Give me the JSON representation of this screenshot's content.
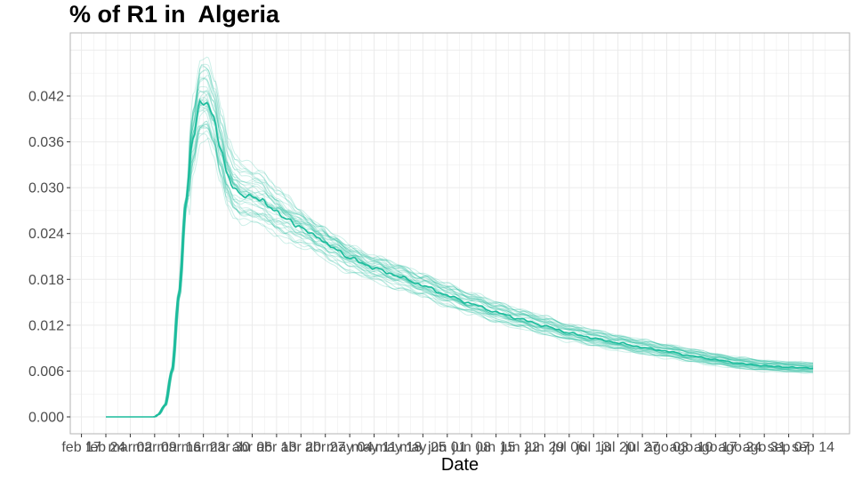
{
  "chart_data": {
    "type": "line",
    "title": "% of R1 in  Algeria",
    "xlabel": "Date",
    "ylabel": "",
    "ylim": [
      0,
      0.049
    ],
    "y_ticks": [
      0.0,
      0.006,
      0.012,
      0.018,
      0.024,
      0.03,
      0.036,
      0.042
    ],
    "y_tick_labels": [
      "0.000",
      "0.006",
      "0.012",
      "0.018",
      "0.024",
      "0.030",
      "0.036",
      "0.042"
    ],
    "x_tick_labels": [
      "feb 17",
      "feb 24",
      "mar 02",
      "mar 09",
      "mar 16",
      "mar 23",
      "mar 30",
      "abr 06",
      "abr 13",
      "abr 20",
      "abr 27",
      "may 04",
      "may 11",
      "may 18",
      "may 25",
      "jun 01",
      "jun 08",
      "jun 15",
      "jun 22",
      "jun 29",
      "jul 06",
      "jul 13",
      "jul 20",
      "jul 27",
      "ago 03",
      "ago 10",
      "ago 17",
      "ago 24",
      "ago 31",
      "sep 07",
      "sep 14"
    ],
    "x_range_days": [
      0,
      203
    ],
    "grid": true,
    "series_color": "#1ABC9C",
    "ensemble_count": 40,
    "series": [
      {
        "x_days": [
          0,
          7,
          14,
          15,
          17,
          19,
          21,
          23,
          25,
          27,
          29,
          31,
          33,
          35,
          37,
          39,
          41,
          43,
          45,
          47,
          49,
          52,
          55,
          58,
          61,
          65,
          70,
          77,
          84,
          91,
          98,
          105,
          112,
          119,
          126,
          133,
          140,
          147,
          154,
          161,
          168,
          175,
          182,
          189,
          196,
          203
        ],
        "values": [
          0.0,
          0.0,
          0.0,
          0.0003,
          0.0015,
          0.006,
          0.016,
          0.028,
          0.0365,
          0.041,
          0.0412,
          0.039,
          0.035,
          0.0315,
          0.0298,
          0.029,
          0.0289,
          0.0287,
          0.0283,
          0.0275,
          0.0268,
          0.0259,
          0.025,
          0.0243,
          0.0234,
          0.0222,
          0.0208,
          0.0195,
          0.0184,
          0.0172,
          0.0159,
          0.0148,
          0.0137,
          0.0128,
          0.0119,
          0.011,
          0.0103,
          0.0097,
          0.0091,
          0.0086,
          0.008,
          0.0075,
          0.007,
          0.0067,
          0.0065,
          0.0064
        ]
      }
    ]
  }
}
